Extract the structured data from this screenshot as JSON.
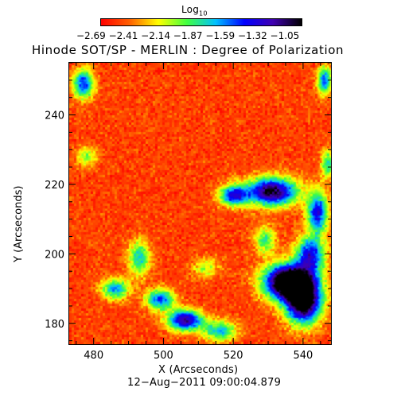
{
  "chart_data": {
    "type": "heatmap",
    "title": "Hinode SOT/SP - MERLIN : Degree of Polarization",
    "colorbar": {
      "title": "Log",
      "title_subscript": "10",
      "tick_labels": "−2.69 −2.41 −2.14 −1.87 −1.59 −1.32 −1.05",
      "ticks": [
        -2.69,
        -2.41,
        -2.14,
        -1.87,
        -1.59,
        -1.32,
        -1.05
      ],
      "range": [
        -2.69,
        -1.05
      ]
    },
    "xlabel": "X (Arcseconds)",
    "ylabel": "Y (Arcseconds)",
    "xlim": [
      473,
      548
    ],
    "ylim": [
      174,
      255
    ],
    "xticks": [
      480,
      500,
      520,
      540
    ],
    "yticks": [
      180,
      200,
      220,
      240
    ],
    "colors": [
      "#ff0000",
      "#ff6000",
      "#ffff00",
      "#40ff40",
      "#00c0ff",
      "#0000ff",
      "#4000b0",
      "#000000"
    ],
    "enhanced_polarization_regions": [
      {
        "x": 536,
        "y": 192,
        "sx": 7,
        "sy": 5,
        "amp": 1.5
      },
      {
        "x": 540,
        "y": 186,
        "sx": 5,
        "sy": 6,
        "amp": 1.2
      },
      {
        "x": 531,
        "y": 218,
        "sx": 7,
        "sy": 4,
        "amp": 1.1
      },
      {
        "x": 520,
        "y": 217,
        "sx": 4,
        "sy": 3,
        "amp": 0.8
      },
      {
        "x": 544,
        "y": 212,
        "sx": 3,
        "sy": 6,
        "amp": 0.8
      },
      {
        "x": 542,
        "y": 200,
        "sx": 4,
        "sy": 5,
        "amp": 0.8
      },
      {
        "x": 506,
        "y": 181,
        "sx": 5,
        "sy": 3,
        "amp": 0.95
      },
      {
        "x": 499,
        "y": 187,
        "sx": 4,
        "sy": 3,
        "amp": 0.7
      },
      {
        "x": 486,
        "y": 190,
        "sx": 4,
        "sy": 3,
        "amp": 0.6
      },
      {
        "x": 493,
        "y": 199,
        "sx": 3,
        "sy": 5,
        "amp": 0.55
      },
      {
        "x": 477,
        "y": 249,
        "sx": 3,
        "sy": 4,
        "amp": 0.75
      },
      {
        "x": 546,
        "y": 250,
        "sx": 2,
        "sy": 4,
        "amp": 0.7
      },
      {
        "x": 516,
        "y": 178,
        "sx": 5,
        "sy": 3,
        "amp": 0.55
      },
      {
        "x": 529,
        "y": 204,
        "sx": 3,
        "sy": 4,
        "amp": 0.45
      },
      {
        "x": 547,
        "y": 226,
        "sx": 2,
        "sy": 4,
        "amp": 0.5
      },
      {
        "x": 478,
        "y": 228,
        "sx": 3,
        "sy": 3,
        "amp": 0.35
      },
      {
        "x": 512,
        "y": 196,
        "sx": 4,
        "sy": 3,
        "amp": 0.3
      }
    ]
  },
  "timestamp": "12−Aug−2011 09:00:04.879"
}
